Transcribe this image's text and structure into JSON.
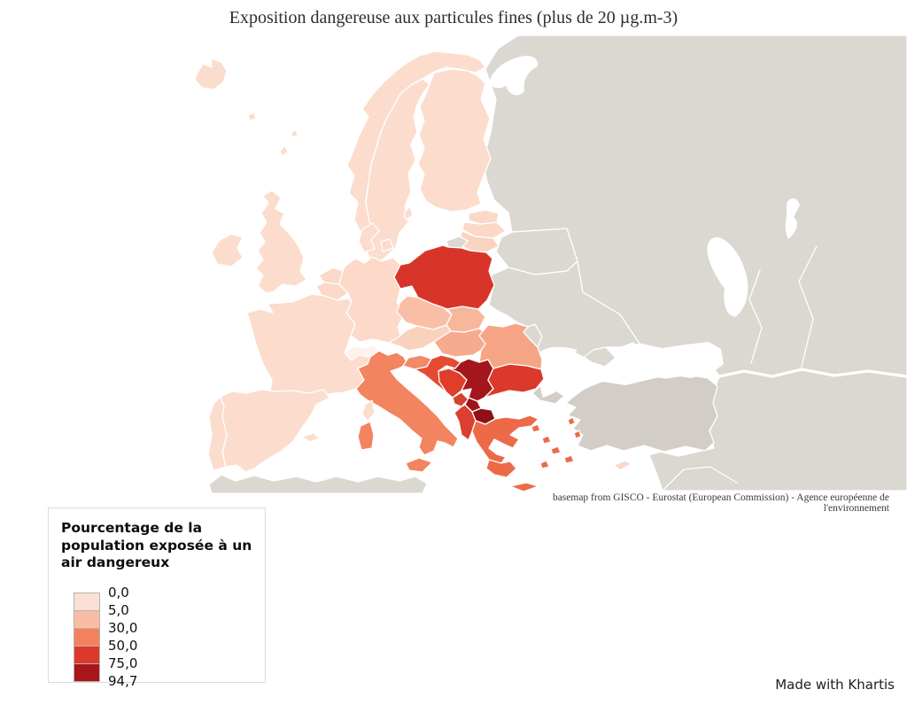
{
  "title": "Exposition dangereuse aux particules fines (plus de 20 µg.m-3)",
  "attribution": "basemap from GISCO - Eurostat (European Commission) - Agence européenne de l'environnement",
  "made_with": "Made with Khartis",
  "legend": {
    "title": "Pourcentage de la population exposée à un air dangereux",
    "breaks": [
      "0,0",
      "5,0",
      "30,0",
      "50,0",
      "75,0",
      "94,7"
    ],
    "swatches": [
      "#fbe1d5",
      "#f8bda4",
      "#f4815d",
      "#dc392b",
      "#a8151b"
    ]
  },
  "map": {
    "sea_color": "#ffffff",
    "border_color": "#ffffff",
    "no_data_color": "#dbd7d1",
    "countries": {
      "iceland": "#fcdccd",
      "faroe": "#fcdccd",
      "shetland": "#fcdccd",
      "norway": "#fcdccd",
      "sweden": "#fcdccd",
      "gotland": "#fcdccd",
      "finland": "#fcdccd",
      "estonia": "#fbd8c8",
      "latvia": "#fbd8c8",
      "lithuania": "#fad3c0",
      "denmark": "#fcdccd",
      "ireland": "#fcdccd",
      "uk": "#fcdccd",
      "netherlands": "#fbd8c8",
      "belgium": "#fbd8c8",
      "luxembourg": "#fbd8c8",
      "germany": "#fcd9c8",
      "france": "#fcdccd",
      "switzerland": "#fdf2ec",
      "austria": "#fad1bc",
      "czechia": "#f8bfa6",
      "poland": "#d8352a",
      "slovakia": "#f7b79b",
      "hungary": "#f6ab8e",
      "slovenia": "#f18a66",
      "croatia": "#e44b32",
      "bosnia": "#df3e2b",
      "serbia": "#a4161b",
      "montenegro": "#d6402e",
      "kosovo": "#9d1419",
      "macedonia": "#8e1116",
      "albania": "#da3f2f",
      "greece": "#ec6a48",
      "bulgaria": "#da392b",
      "romania": "#f5a586",
      "italy": "#f2845f",
      "sicily": "#f2845f",
      "sardinia": "#f2845f",
      "corsica": "#fcdccd",
      "baleares": "#fcdccd",
      "spain": "#fcdccd",
      "portugal": "#fcdccd",
      "cyprus": "#fbd8c8",
      "russia": "#dbd7d1",
      "kaliningrad": "#dbd7d1",
      "belarus": "#dbd7d1",
      "ukraine": "#dbd7d1",
      "crimea": "#dbd7d1",
      "moldova": "#dbd7d1",
      "mideast": "#dbd7d1",
      "northafrica": "#dbd7d1",
      "turkey": "#d2cdc6",
      "turkey_eur": "#d2cdc6"
    }
  }
}
